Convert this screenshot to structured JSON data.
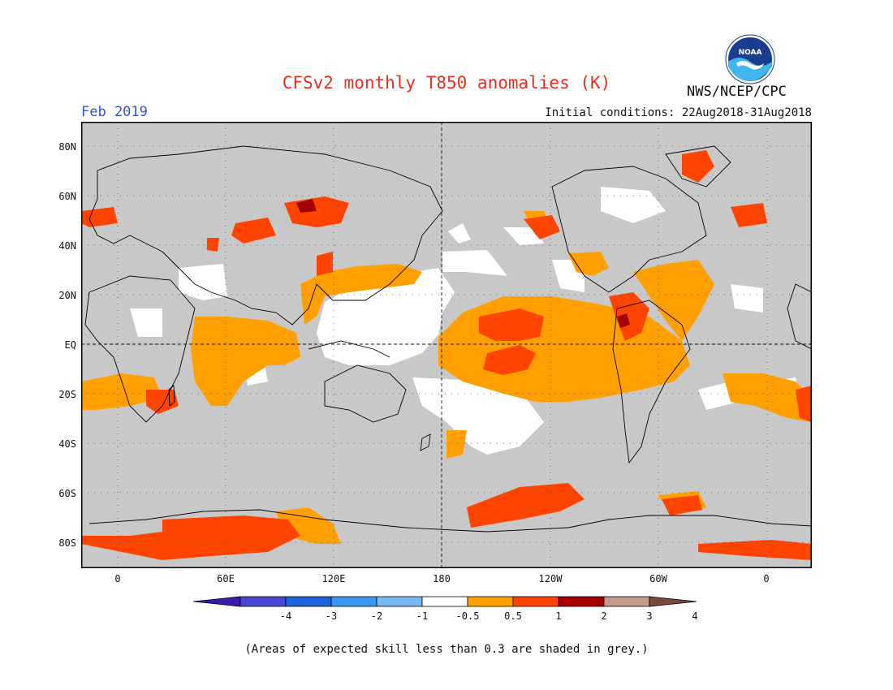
{
  "header": {
    "title": "CFSv2 monthly T850 anomalies (K)",
    "month": "Feb 2019",
    "initial_conditions": "Initial conditions: 22Aug2018-31Aug2018",
    "agency": "NWS/NCEP/CPC",
    "logo_text": "NOAA"
  },
  "axes": {
    "y_ticks": [
      "80N",
      "60N",
      "40N",
      "20N",
      "EQ",
      "20S",
      "40S",
      "60S",
      "80S"
    ],
    "x_ticks": [
      "0",
      "60E",
      "120E",
      "180",
      "120W",
      "60W",
      "0"
    ]
  },
  "legend": {
    "labels": [
      "-4",
      "-3",
      "-2",
      "-1",
      "-0.5",
      "0.5",
      "1",
      "2",
      "3",
      "4"
    ],
    "colors": [
      "#3a1aa8",
      "#4848d0",
      "#1e64d8",
      "#3c96f0",
      "#78b8f0",
      "#ffffff",
      "#ffa000",
      "#ff4400",
      "#a50000",
      "#c49a88",
      "#7a4a3c"
    ]
  },
  "footnote": "(Areas of expected skill less than 0.3 are shaded in grey.)",
  "colors": {
    "grey_mask": "#c8c8c8",
    "anom_05_1": "#ffa000",
    "anom_1_2": "#ff4400",
    "anom_2_3": "#a50000",
    "title": "#e8301c",
    "month": "#3355cc"
  }
}
